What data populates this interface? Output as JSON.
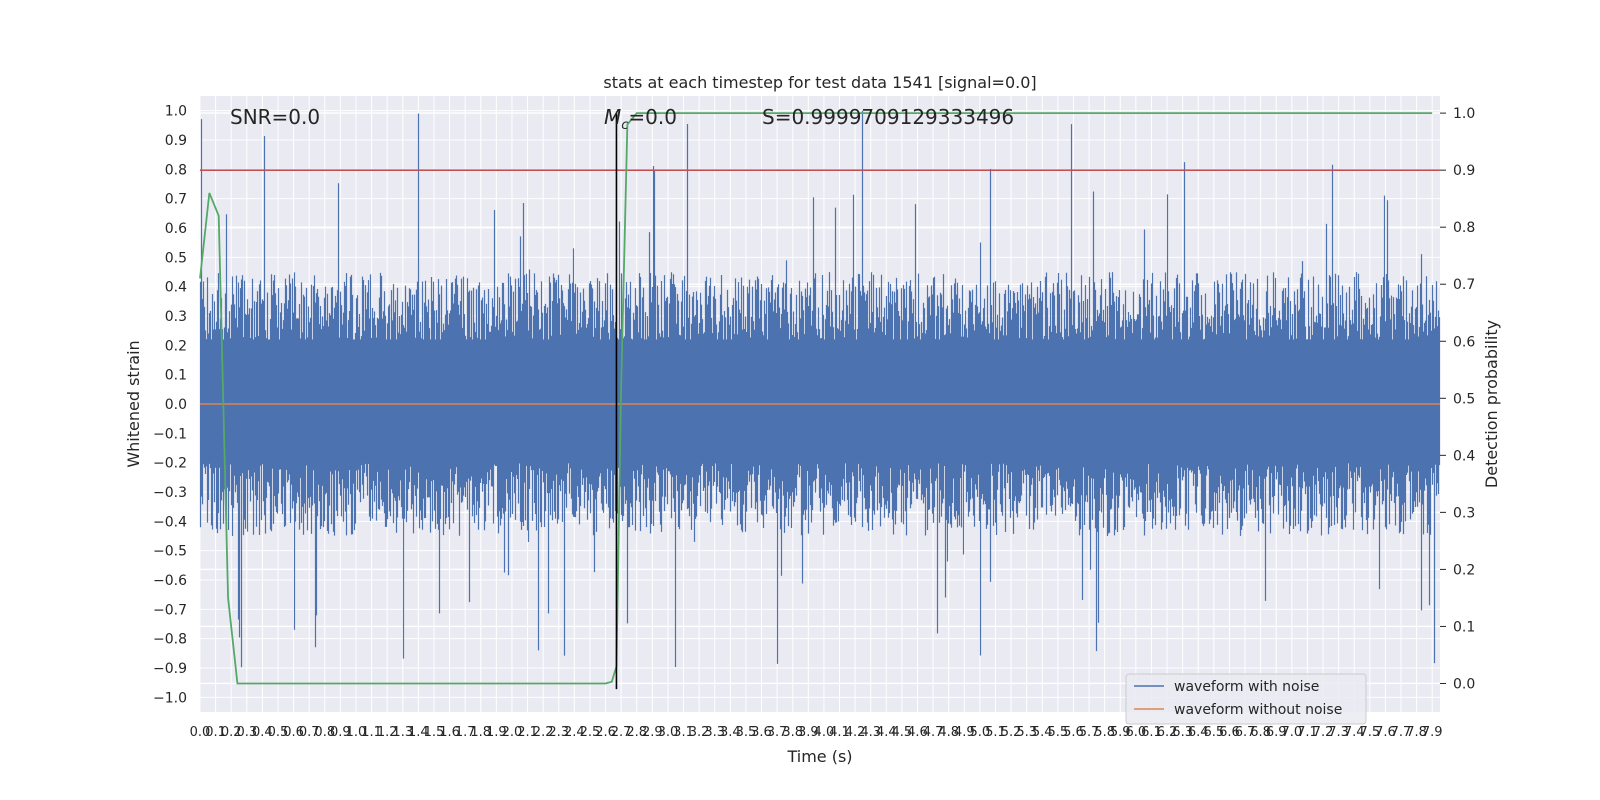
{
  "chart_data": {
    "type": "line",
    "title": "stats at each timestep for test data 1541 [signal=0.0]",
    "xlabel": "Time (s)",
    "ylabel": "Whitened strain",
    "y2label": "Detection probability",
    "xlim": [
      0.0,
      7.95
    ],
    "ylim": [
      -1.05,
      1.05
    ],
    "y2lim": [
      -0.05,
      1.03
    ],
    "x_ticks": [
      "0.0",
      "0.1",
      "0.2",
      "0.3",
      "0.4",
      "0.5",
      "0.6",
      "0.7",
      "0.8",
      "0.9",
      "1.0",
      "1.1",
      "1.2",
      "1.3",
      "1.4",
      "1.5",
      "1.6",
      "1.7",
      "1.8",
      "1.9",
      "2.0",
      "2.1",
      "2.2",
      "2.3",
      "2.4",
      "2.5",
      "2.6",
      "2.7",
      "2.8",
      "2.9",
      "3.0",
      "3.1",
      "3.2",
      "3.3",
      "3.4",
      "3.5",
      "3.6",
      "3.7",
      "3.8",
      "3.9",
      "4.0",
      "4.1",
      "4.2",
      "4.3",
      "4.4",
      "4.5",
      "4.6",
      "4.7",
      "4.8",
      "4.9",
      "5.0",
      "5.1",
      "5.2",
      "5.3",
      "5.4",
      "5.5",
      "5.6",
      "5.7",
      "5.8",
      "5.9",
      "6.0",
      "6.1",
      "6.2",
      "6.3",
      "6.4",
      "6.5",
      "6.6",
      "6.7",
      "6.8",
      "6.9",
      "7.0",
      "7.1",
      "7.2",
      "7.3",
      "7.4",
      "7.5",
      "7.6",
      "7.7",
      "7.8",
      "7.9"
    ],
    "y_ticks": [
      "1.0",
      "0.9",
      "0.8",
      "0.7",
      "0.6",
      "0.5",
      "0.4",
      "0.3",
      "0.2",
      "0.1",
      "0.0",
      "−0.1",
      "−0.2",
      "−0.3",
      "−0.4",
      "−0.5",
      "−0.6",
      "−0.7",
      "−0.8",
      "−0.9",
      "−1.0"
    ],
    "y2_ticks": [
      "1.0",
      "0.9",
      "0.8",
      "0.7",
      "0.6",
      "0.5",
      "0.4",
      "0.3",
      "0.2",
      "0.1",
      "0.0"
    ],
    "annotations": {
      "snr": "SNR=0.0",
      "mc_symbol": "M",
      "mc_sub": "c",
      "mc_value": "=0.0",
      "s": "S=0.9999709129333496"
    },
    "noise_envelope": {
      "typical_max": 0.45,
      "typical_min": -0.45,
      "spike_max": 1.0,
      "spike_min": -0.93
    },
    "threshold": 0.9,
    "marker_time": 2.67,
    "series": [
      {
        "name": "waveform with noise",
        "color": "#4c72b0"
      },
      {
        "name": "waveform without noise",
        "color": "#dd8452",
        "x": [
          0.0,
          7.95
        ],
        "y": [
          0.0,
          0.0
        ]
      },
      {
        "color": "#55a868",
        "x": [
          0.0,
          0.06,
          0.12,
          0.18,
          0.24,
          0.27,
          0.3,
          1.0,
          2.0,
          2.6,
          2.64,
          2.67,
          2.7,
          2.74,
          2.8,
          7.9
        ],
        "y": [
          0.71,
          0.86,
          0.82,
          0.15,
          0.0,
          0.0,
          0.0,
          0.0,
          0.0,
          0.0,
          0.003,
          0.03,
          0.52,
          0.98,
          1.0,
          1.0
        ]
      }
    ],
    "legend_position": "lower-right",
    "grid": true
  }
}
